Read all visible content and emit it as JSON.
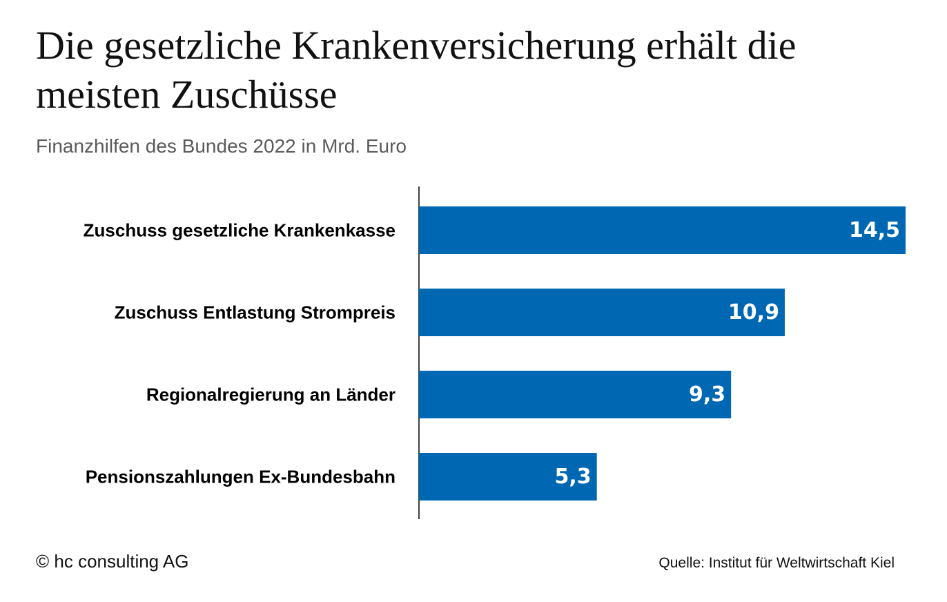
{
  "chart_data": {
    "type": "bar",
    "orientation": "horizontal",
    "title": "Die gesetzliche Krankenversicherung erhält die meisten Zuschüsse",
    "subtitle": "Finanzhilfen des Bundes 2022 in Mrd. Euro",
    "categories": [
      "Zuschuss gesetzliche Krankenkasse",
      "Zuschuss Entlastung Strompreis",
      "Regionalregierung an Länder",
      "Pensionszahlungen Ex-Bundesbahn"
    ],
    "values": [
      14.5,
      10.9,
      9.3,
      5.3
    ],
    "value_labels": [
      "14,5",
      "10,9",
      "9,3",
      "5,3"
    ],
    "xlim": [
      0,
      14.5
    ],
    "grid": false,
    "legend": "none",
    "bar_color": "#0068b3"
  },
  "footer": {
    "copyright": "© hc consulting AG",
    "source": "Quelle: Institut für Weltwirtschaft Kiel"
  }
}
